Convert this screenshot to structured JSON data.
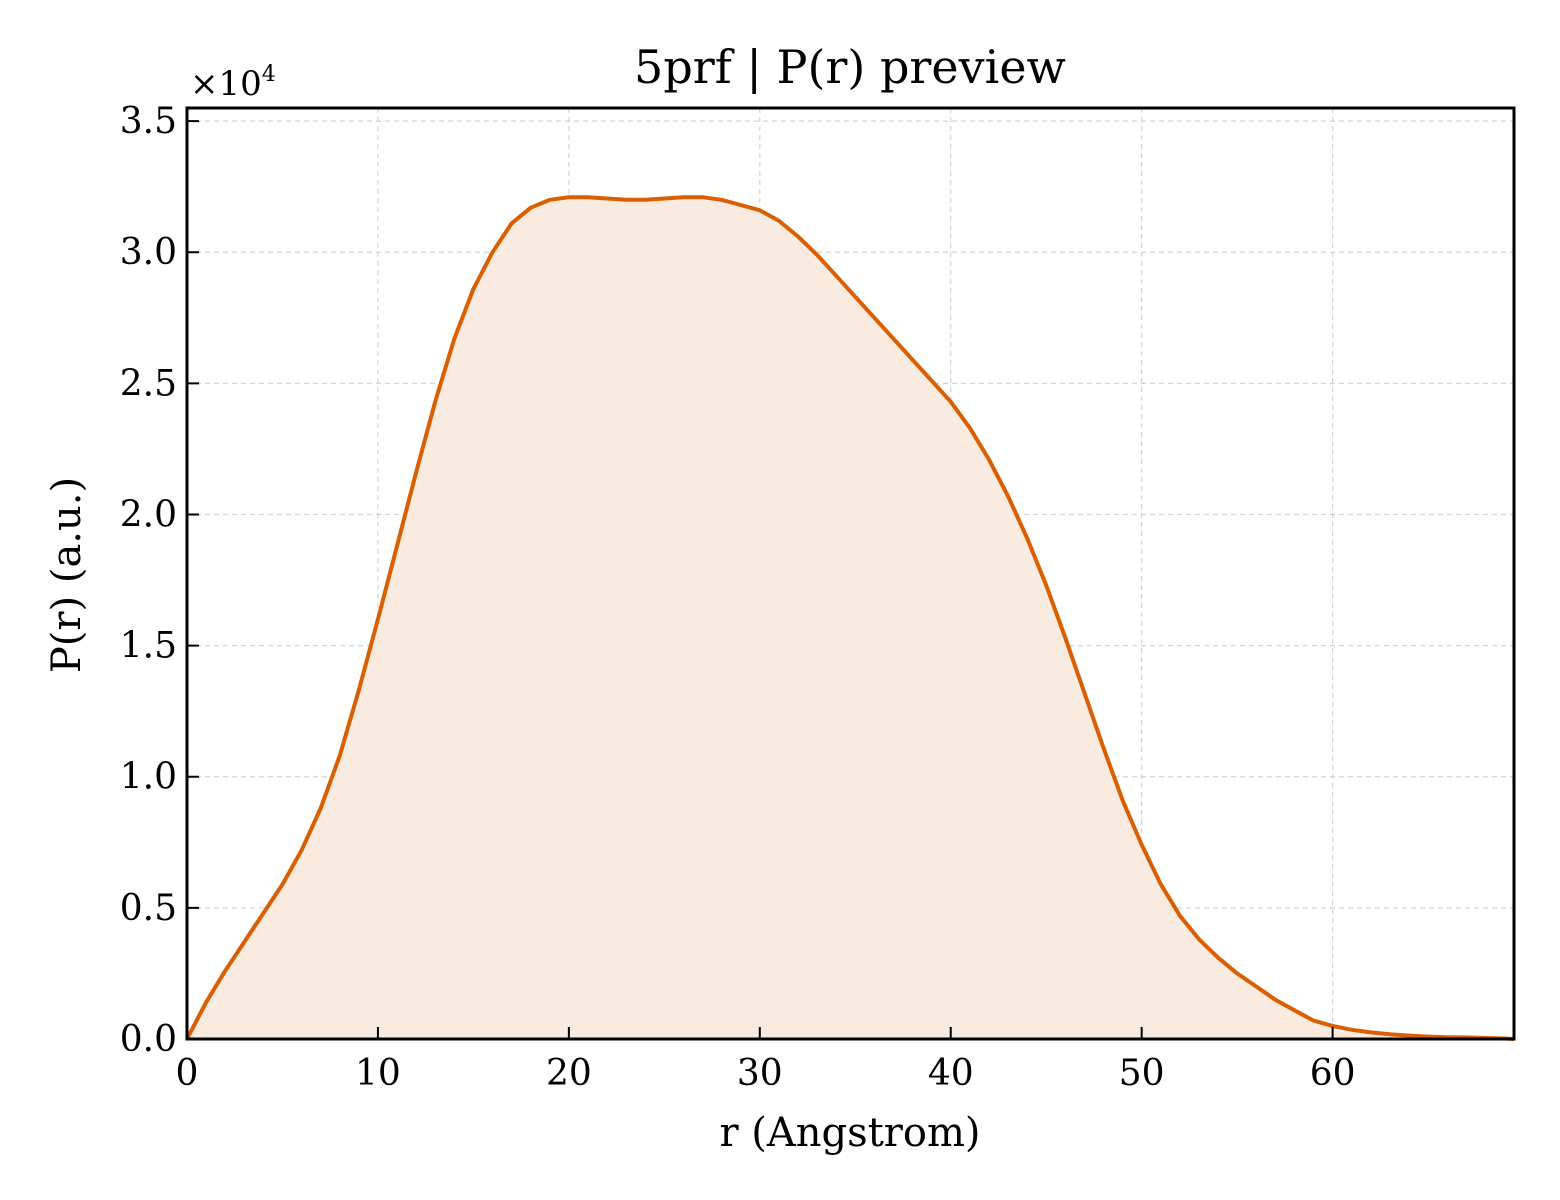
{
  "chart_data": {
    "type": "area",
    "title": "5prf | P(r) preview",
    "xlabel": "r (Angstrom)",
    "ylabel": "P(r) (a.u.)",
    "y_offset_label": "×10",
    "y_offset_exponent": "4",
    "xlim": [
      0,
      69.5
    ],
    "ylim": [
      0,
      3.55
    ],
    "x_ticks": [
      0,
      10,
      20,
      30,
      40,
      50,
      60
    ],
    "x_tick_labels": [
      "0",
      "10",
      "20",
      "30",
      "40",
      "50",
      "60"
    ],
    "y_ticks": [
      0,
      0.5,
      1.0,
      1.5,
      2.0,
      2.5,
      3.0,
      3.5
    ],
    "y_tick_labels": [
      "0.0",
      "0.5",
      "1.0",
      "1.5",
      "2.0",
      "2.5",
      "3.0",
      "3.5"
    ],
    "grid": true,
    "line_color": "#d95f02",
    "fill_color": "#f9ebe0",
    "series": [
      {
        "x": [
          0,
          1,
          2,
          3,
          4,
          5,
          6,
          7,
          8,
          9,
          10,
          11,
          12,
          13,
          14,
          15,
          16,
          17,
          18,
          19,
          20,
          21,
          22,
          23,
          24,
          25,
          26,
          27,
          28,
          29,
          30,
          31,
          32,
          33,
          34,
          35,
          36,
          37,
          38,
          39,
          40,
          41,
          42,
          43,
          44,
          45,
          46,
          47,
          48,
          49,
          50,
          51,
          52,
          53,
          54,
          55,
          56,
          57,
          58,
          59,
          60,
          61,
          62,
          63,
          64,
          65,
          66,
          67,
          68,
          69,
          69.5
        ],
        "y": [
          0.0,
          0.14,
          0.26,
          0.37,
          0.48,
          0.59,
          0.72,
          0.88,
          1.08,
          1.33,
          1.6,
          1.88,
          2.16,
          2.43,
          2.67,
          2.86,
          3.0,
          3.11,
          3.17,
          3.2,
          3.21,
          3.21,
          3.205,
          3.2,
          3.2,
          3.205,
          3.21,
          3.21,
          3.2,
          3.18,
          3.16,
          3.12,
          3.06,
          2.99,
          2.91,
          2.83,
          2.75,
          2.67,
          2.59,
          2.51,
          2.43,
          2.33,
          2.21,
          2.07,
          1.91,
          1.73,
          1.53,
          1.32,
          1.11,
          0.91,
          0.74,
          0.59,
          0.47,
          0.38,
          0.31,
          0.25,
          0.2,
          0.15,
          0.11,
          0.07,
          0.05,
          0.035,
          0.025,
          0.018,
          0.013,
          0.009,
          0.007,
          0.006,
          0.004,
          0.002,
          0.0
        ]
      }
    ]
  }
}
